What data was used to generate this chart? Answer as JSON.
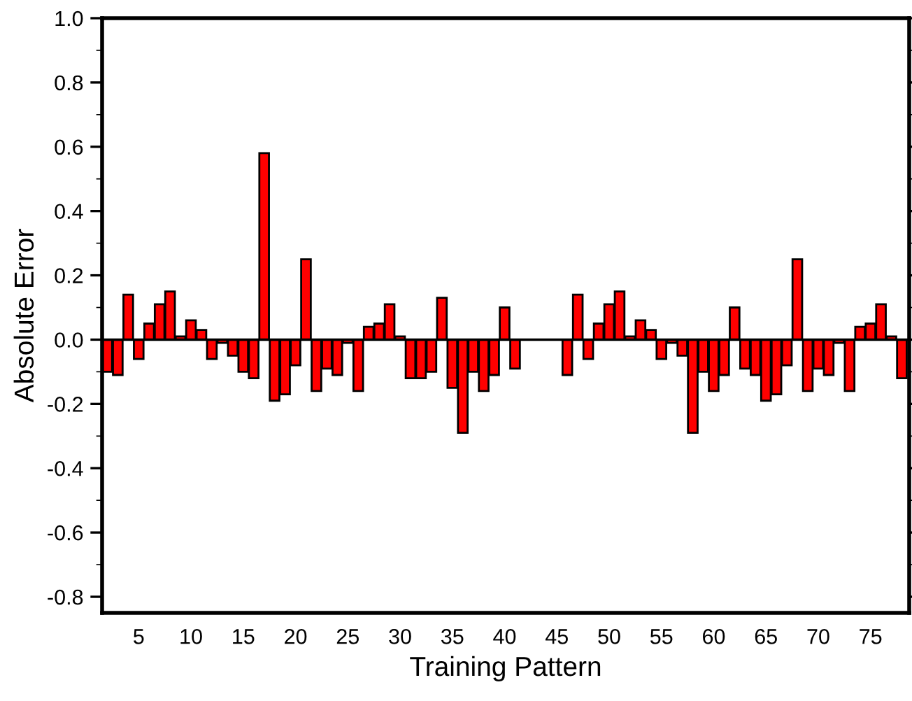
{
  "chart_data": {
    "type": "bar",
    "xlabel": "Training Pattern",
    "ylabel": "Absolute Error",
    "color": "#ff0000",
    "x": [
      2,
      3,
      4,
      5,
      6,
      7,
      8,
      9,
      10,
      11,
      12,
      13,
      14,
      15,
      16,
      17,
      18,
      19,
      20,
      21,
      22,
      23,
      24,
      25,
      26,
      27,
      28,
      29,
      30,
      31,
      32,
      33,
      34,
      35,
      36,
      37,
      38,
      39,
      40,
      41,
      42,
      43,
      44,
      45,
      46,
      47,
      48,
      49,
      50,
      51,
      52,
      53,
      54,
      55,
      56,
      57,
      58,
      59,
      60,
      61,
      62,
      63,
      64,
      65,
      66,
      67,
      68,
      69,
      70,
      71,
      72,
      73,
      74,
      75,
      76,
      77,
      78
    ],
    "values": [
      -0.1,
      -0.11,
      0.14,
      -0.06,
      0.05,
      0.11,
      0.15,
      0.01,
      0.06,
      0.03,
      -0.06,
      -0.01,
      -0.05,
      -0.1,
      -0.12,
      0.58,
      -0.19,
      -0.17,
      -0.08,
      0.25,
      -0.16,
      -0.09,
      -0.11,
      -0.01,
      -0.16,
      0.04,
      0.05,
      0.11,
      0.01,
      -0.12,
      -0.12,
      -0.1,
      0.13,
      -0.15,
      -0.29,
      -0.1,
      -0.16,
      -0.11,
      0.1,
      -0.09,
      null,
      null,
      null,
      null,
      -0.11,
      0.14,
      -0.06,
      0.05,
      0.11,
      0.15,
      0.01,
      0.06,
      0.03,
      -0.06,
      -0.01,
      -0.05,
      -0.29,
      -0.1,
      -0.16,
      -0.11,
      0.1,
      -0.09,
      -0.11,
      -0.19,
      -0.17,
      -0.08,
      0.25,
      -0.16,
      -0.09,
      -0.11,
      -0.01,
      -0.16,
      0.04,
      0.05,
      0.11,
      0.01,
      -0.12
    ],
    "xlim": [
      1.5,
      78.7
    ],
    "xticks": [
      5,
      10,
      15,
      20,
      25,
      30,
      35,
      40,
      45,
      50,
      55,
      60,
      65,
      70,
      75
    ],
    "ylim": [
      -0.85,
      1.0
    ],
    "yticks": [
      {
        "value": 1.0,
        "label": "1.0"
      },
      {
        "value": 0.8,
        "label": "0.8"
      },
      {
        "value": 0.6,
        "label": "0.6"
      },
      {
        "value": 0.4,
        "label": "0.4"
      },
      {
        "value": 0.2,
        "label": "0.2"
      },
      {
        "value": 0.0,
        "label": "0.0"
      },
      {
        "value": -0.2,
        "label": "-0.2"
      },
      {
        "value": -0.4,
        "label": "-0.4"
      },
      {
        "value": -0.6,
        "label": "-0.6"
      },
      {
        "value": -0.8,
        "label": "-0.8"
      }
    ],
    "ref_lines": [
      {
        "axis": "y",
        "value": 0,
        "color": "#000000"
      }
    ],
    "grid": false,
    "legend": false
  }
}
